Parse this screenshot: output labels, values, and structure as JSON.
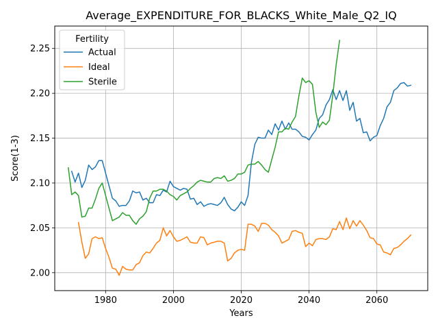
{
  "chart_data": {
    "type": "line",
    "title": "Average_EXPENDITURE_FOR_BLACKS_White_Male_Q2_IQ",
    "xlabel": "Years",
    "ylabel": "Score(1-3)",
    "xlim": [
      1965,
      2075
    ],
    "ylim": [
      1.98,
      2.275
    ],
    "xticks": [
      1980,
      2000,
      2020,
      2040,
      2060
    ],
    "yticks": [
      2.0,
      2.05,
      2.1,
      2.15,
      2.2,
      2.25
    ],
    "ytick_labels": [
      "2.00",
      "2.05",
      "2.10",
      "2.15",
      "2.20",
      "2.25"
    ],
    "grid": true,
    "legend": {
      "title": "Fertility",
      "placement": "top-left"
    },
    "series": [
      {
        "name": "Actual",
        "color": "#1f77b4",
        "x": [
          1970,
          1971,
          1972,
          1973,
          1974,
          1975,
          1976,
          1977,
          1978,
          1979,
          1980,
          1981,
          1982,
          1983,
          1984,
          1985,
          1986,
          1987,
          1988,
          1989,
          1990,
          1991,
          1992,
          1993,
          1994,
          1995,
          1996,
          1997,
          1998,
          1999,
          2000,
          2001,
          2002,
          2003,
          2004,
          2005,
          2006,
          2007,
          2008,
          2009,
          2010,
          2011,
          2012,
          2013,
          2014,
          2015,
          2016,
          2017,
          2018,
          2019,
          2020,
          2021,
          2022,
          2023,
          2024,
          2025,
          2026,
          2027,
          2028,
          2029,
          2030,
          2031,
          2032,
          2033,
          2034,
          2035,
          2036,
          2037,
          2038,
          2039,
          2040,
          2041,
          2042,
          2043,
          2044,
          2045,
          2046,
          2047,
          2048,
          2049,
          2050,
          2051,
          2052,
          2053,
          2054,
          2055,
          2056,
          2057,
          2058,
          2059,
          2060,
          2061,
          2062,
          2063,
          2064,
          2065,
          2066,
          2067,
          2068,
          2069,
          2070
        ],
        "values": [
          2.113,
          2.101,
          2.111,
          2.095,
          2.103,
          2.12,
          2.115,
          2.118,
          2.125,
          2.125,
          2.111,
          2.097,
          2.083,
          2.08,
          2.074,
          2.075,
          2.075,
          2.08,
          2.091,
          2.089,
          2.09,
          2.081,
          2.083,
          2.078,
          2.078,
          2.087,
          2.086,
          2.092,
          2.09,
          2.102,
          2.096,
          2.094,
          2.092,
          2.094,
          2.093,
          2.082,
          2.083,
          2.076,
          2.079,
          2.074,
          2.076,
          2.077,
          2.076,
          2.075,
          2.078,
          2.084,
          2.076,
          2.071,
          2.069,
          2.073,
          2.079,
          2.075,
          2.086,
          2.123,
          2.143,
          2.151,
          2.15,
          2.15,
          2.159,
          2.154,
          2.166,
          2.159,
          2.169,
          2.16,
          2.167,
          2.16,
          2.16,
          2.157,
          2.152,
          2.151,
          2.148,
          2.154,
          2.159,
          2.172,
          2.176,
          2.187,
          2.193,
          2.204,
          2.193,
          2.203,
          2.192,
          2.203,
          2.181,
          2.19,
          2.169,
          2.172,
          2.156,
          2.157,
          2.147,
          2.151,
          2.153,
          2.164,
          2.172,
          2.185,
          2.19,
          2.203,
          2.206,
          2.211,
          2.212,
          2.208,
          2.209
        ]
      },
      {
        "name": "Ideal",
        "color": "#ff7f0e",
        "x": [
          1972,
          1973,
          1974,
          1975,
          1976,
          1977,
          1978,
          1979,
          1980,
          1981,
          1982,
          1983,
          1984,
          1985,
          1986,
          1987,
          1988,
          1989,
          1990,
          1991,
          1992,
          1993,
          1994,
          1995,
          1996,
          1997,
          1998,
          1999,
          2000,
          2001,
          2002,
          2003,
          2004,
          2005,
          2006,
          2007,
          2008,
          2009,
          2010,
          2011,
          2012,
          2013,
          2014,
          2015,
          2016,
          2017,
          2018,
          2019,
          2020,
          2021,
          2022,
          2023,
          2024,
          2025,
          2026,
          2027,
          2028,
          2029,
          2030,
          2031,
          2032,
          2033,
          2034,
          2035,
          2036,
          2037,
          2038,
          2039,
          2040,
          2041,
          2042,
          2043,
          2044,
          2045,
          2046,
          2047,
          2048,
          2049,
          2050,
          2051,
          2052,
          2053,
          2054,
          2055,
          2056,
          2057,
          2058,
          2059,
          2060,
          2061,
          2062,
          2063,
          2064,
          2065,
          2066,
          2067,
          2068,
          2069,
          2070
        ],
        "values": [
          2.056,
          2.034,
          2.016,
          2.021,
          2.038,
          2.04,
          2.038,
          2.039,
          2.027,
          2.017,
          2.005,
          2.004,
          1.997,
          2.007,
          2.004,
          2.003,
          2.003,
          2.009,
          2.011,
          2.019,
          2.023,
          2.022,
          2.027,
          2.033,
          2.036,
          2.05,
          2.041,
          2.047,
          2.04,
          2.035,
          2.036,
          2.038,
          2.04,
          2.034,
          2.033,
          2.033,
          2.04,
          2.039,
          2.031,
          2.033,
          2.034,
          2.035,
          2.035,
          2.033,
          2.013,
          2.016,
          2.022,
          2.025,
          2.026,
          2.025,
          2.054,
          2.054,
          2.052,
          2.046,
          2.055,
          2.055,
          2.053,
          2.048,
          2.045,
          2.041,
          2.033,
          2.035,
          2.037,
          2.046,
          2.047,
          2.045,
          2.044,
          2.029,
          2.033,
          2.03,
          2.037,
          2.038,
          2.038,
          2.037,
          2.04,
          2.049,
          2.048,
          2.057,
          2.048,
          2.061,
          2.049,
          2.058,
          2.052,
          2.058,
          2.053,
          2.047,
          2.039,
          2.038,
          2.032,
          2.031,
          2.023,
          2.022,
          2.02,
          2.027,
          2.028,
          2.031,
          2.035,
          2.038,
          2.042
        ]
      },
      {
        "name": "Sterile",
        "color": "#2ca02c",
        "x": [
          1969,
          1970,
          1971,
          1972,
          1973,
          1974,
          1975,
          1976,
          1977,
          1978,
          1979,
          1980,
          1981,
          1982,
          1983,
          1984,
          1985,
          1986,
          1987,
          1988,
          1989,
          1990,
          1991,
          1992,
          1993,
          1994,
          1995,
          1996,
          1997,
          1998,
          1999,
          2000,
          2001,
          2002,
          2003,
          2004,
          2005,
          2006,
          2007,
          2008,
          2009,
          2010,
          2011,
          2012,
          2013,
          2014,
          2015,
          2016,
          2017,
          2018,
          2019,
          2020,
          2021,
          2022,
          2023,
          2024,
          2025,
          2026,
          2027,
          2028,
          2029,
          2030,
          2031,
          2032,
          2033,
          2034,
          2035,
          2036,
          2037,
          2038,
          2039,
          2040,
          2041,
          2042,
          2043,
          2044,
          2045,
          2046,
          2047,
          2048,
          2049
        ],
        "values": [
          2.117,
          2.087,
          2.09,
          2.086,
          2.062,
          2.063,
          2.072,
          2.072,
          2.082,
          2.094,
          2.1,
          2.086,
          2.072,
          2.058,
          2.06,
          2.062,
          2.067,
          2.064,
          2.064,
          2.058,
          2.054,
          2.06,
          2.063,
          2.068,
          2.083,
          2.091,
          2.091,
          2.093,
          2.093,
          2.091,
          2.087,
          2.085,
          2.081,
          2.086,
          2.088,
          2.09,
          2.094,
          2.097,
          2.101,
          2.103,
          2.102,
          2.101,
          2.101,
          2.105,
          2.106,
          2.105,
          2.108,
          2.102,
          2.103,
          2.105,
          2.11,
          2.11,
          2.112,
          2.12,
          2.121,
          2.121,
          2.124,
          2.12,
          2.115,
          2.112,
          2.126,
          2.14,
          2.157,
          2.157,
          2.161,
          2.16,
          2.168,
          2.174,
          2.197,
          2.217,
          2.212,
          2.214,
          2.21,
          2.179,
          2.162,
          2.168,
          2.165,
          2.17,
          2.198,
          2.232,
          2.259
        ]
      }
    ]
  }
}
